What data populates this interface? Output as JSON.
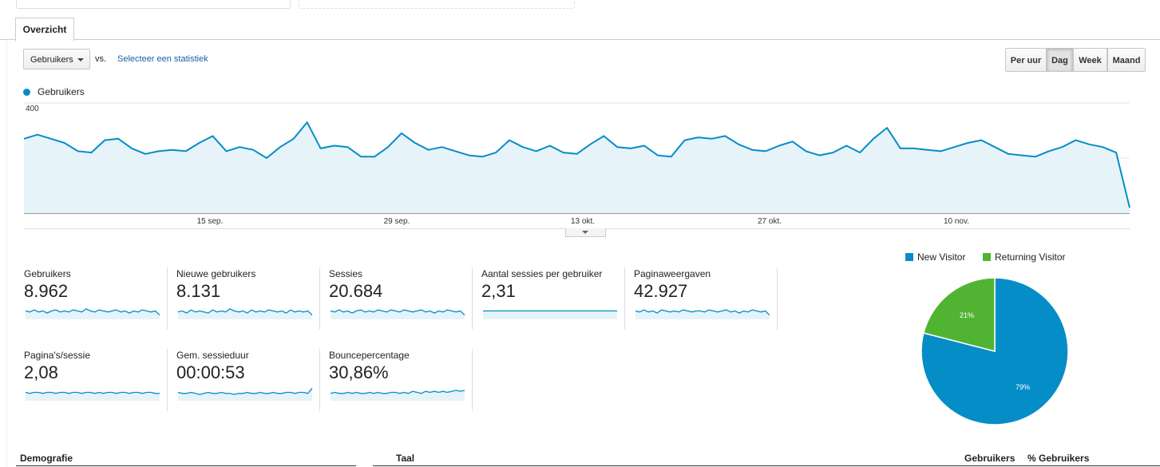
{
  "tabs": [
    {
      "label": "Overzicht",
      "active": true
    }
  ],
  "toolbar": {
    "metric_select": "Gebruikers",
    "vs_label": "vs.",
    "select_stat_link": "Selecteer een statistiek",
    "granularity": [
      {
        "label": "Per uur",
        "active": false
      },
      {
        "label": "Dag",
        "active": true
      },
      {
        "label": "Week",
        "active": false
      },
      {
        "label": "Maand",
        "active": false
      }
    ]
  },
  "chart_data": {
    "type": "area",
    "series": [
      {
        "name": "Gebruikers",
        "color": "#058dc7",
        "values": [
          270,
          285,
          270,
          255,
          225,
          220,
          265,
          270,
          235,
          215,
          225,
          230,
          225,
          255,
          280,
          225,
          240,
          230,
          200,
          240,
          270,
          330,
          235,
          245,
          240,
          205,
          205,
          240,
          290,
          255,
          230,
          240,
          225,
          210,
          205,
          220,
          265,
          240,
          225,
          245,
          220,
          215,
          250,
          280,
          240,
          235,
          245,
          210,
          205,
          265,
          275,
          270,
          280,
          250,
          230,
          225,
          245,
          260,
          225,
          210,
          220,
          245,
          220,
          270,
          310,
          235,
          235,
          230,
          225,
          240,
          255,
          265,
          240,
          215,
          210,
          205,
          225,
          240,
          265,
          250,
          240,
          220,
          20
        ]
      }
    ],
    "x_ticks": [
      "15 sep.",
      "29 sep.",
      "13 okt.",
      "27 okt.",
      "10 nov."
    ],
    "y_ticks": [
      "400",
      "200"
    ],
    "ylim": [
      0,
      400
    ],
    "grid": true
  },
  "metrics": [
    {
      "label": "Gebruikers",
      "value": "8.962",
      "spark": [
        5,
        4,
        6,
        4,
        5,
        3,
        5,
        6,
        4,
        5,
        4,
        6,
        5,
        4,
        7,
        5,
        4,
        6,
        5,
        4,
        5,
        6,
        4,
        5,
        3,
        5,
        4,
        6,
        5,
        4,
        5,
        1
      ]
    },
    {
      "label": "Nieuwe gebruikers",
      "value": "8.131",
      "spark": [
        4,
        5,
        3,
        6,
        4,
        5,
        4,
        3,
        6,
        4,
        5,
        4,
        7,
        5,
        4,
        5,
        3,
        6,
        4,
        5,
        4,
        6,
        5,
        4,
        5,
        3,
        6,
        4,
        5,
        4,
        5,
        1
      ]
    },
    {
      "label": "Sessies",
      "value": "20.684",
      "spark": [
        5,
        4,
        6,
        4,
        5,
        3,
        5,
        6,
        4,
        5,
        4,
        6,
        5,
        4,
        6,
        5,
        4,
        6,
        5,
        4,
        5,
        6,
        4,
        5,
        3,
        5,
        4,
        6,
        5,
        4,
        5,
        1
      ]
    },
    {
      "label": "Aantal sessies per gebruiker",
      "value": "2,31",
      "spark": [
        5,
        5,
        5,
        5,
        5,
        5,
        5,
        5,
        5,
        5,
        5,
        5,
        5,
        5,
        5,
        5,
        5,
        5,
        5,
        5,
        5,
        5,
        5,
        5,
        5,
        5,
        5,
        5,
        5,
        5,
        5,
        5
      ]
    },
    {
      "label": "Paginaweergaven",
      "value": "42.927",
      "spark": [
        5,
        4,
        6,
        4,
        5,
        3,
        6,
        5,
        4,
        5,
        4,
        6,
        5,
        4,
        5,
        5,
        4,
        6,
        5,
        4,
        5,
        6,
        4,
        5,
        3,
        5,
        4,
        6,
        5,
        4,
        5,
        1
      ]
    },
    {
      "label": "Pagina's/sessie",
      "value": "2,08",
      "spark": [
        5,
        4,
        5,
        5,
        4,
        5,
        5,
        4,
        5,
        5,
        4,
        5,
        5,
        4,
        5,
        5,
        4,
        5,
        4,
        5,
        5,
        4,
        5,
        5,
        4,
        5,
        5,
        4,
        5,
        5,
        4,
        4
      ]
    },
    {
      "label": "Gem. sessieduur",
      "value": "00:00:53",
      "spark": [
        5,
        4,
        4,
        5,
        4,
        3,
        4,
        5,
        4,
        4,
        5,
        4,
        4,
        3,
        4,
        4,
        5,
        4,
        4,
        5,
        4,
        4,
        5,
        4,
        4,
        5,
        5,
        4,
        5,
        5,
        4,
        9
      ]
    },
    {
      "label": "Bouncepercentage",
      "value": "30,86%",
      "spark": [
        4,
        5,
        4,
        4,
        5,
        4,
        5,
        4,
        4,
        5,
        4,
        5,
        4,
        4,
        5,
        5,
        4,
        5,
        4,
        6,
        5,
        4,
        6,
        5,
        6,
        5,
        6,
        5,
        6,
        7,
        6,
        7
      ]
    }
  ],
  "pie": {
    "legend": [
      {
        "label": "New Visitor",
        "color": "#058dc7"
      },
      {
        "label": "Returning Visitor",
        "color": "#50b432"
      }
    ],
    "slices": [
      {
        "label": "79%",
        "value": 79,
        "color": "#058dc7"
      },
      {
        "label": "21%",
        "value": 21,
        "color": "#50b432"
      }
    ]
  },
  "bottom": {
    "demografie": "Demografie",
    "taal": "Taal",
    "col_users": "Gebruikers",
    "col_pct": "% Gebruikers"
  }
}
